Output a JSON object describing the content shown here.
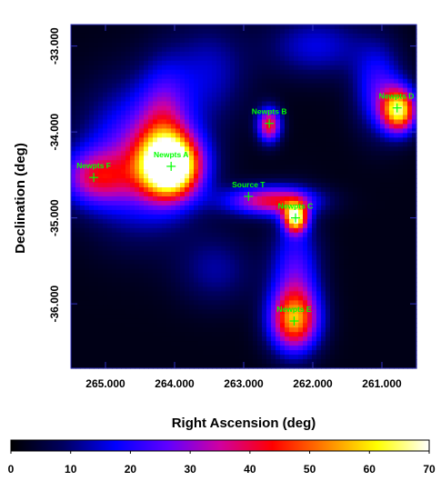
{
  "chart_data": {
    "type": "heatmap",
    "xlabel": "Right Ascension (deg)",
    "ylabel": "Declination (deg)",
    "xlim": [
      265.5,
      260.5
    ],
    "ylim": [
      -36.75,
      -32.75
    ],
    "x_ticks": [
      265.0,
      264.0,
      263.0,
      262.0,
      261.0
    ],
    "x_tick_labels": [
      "265.000",
      "264.000",
      "263.000",
      "262.000",
      "261.000"
    ],
    "y_ticks": [
      -33.0,
      -34.0,
      -35.0,
      -36.0
    ],
    "y_tick_labels": [
      "-33.000",
      "-34.000",
      "-35.000",
      "-36.000"
    ],
    "colorbar": {
      "range": [
        0,
        70
      ],
      "ticks": [
        "0",
        "10",
        "20",
        "30",
        "40",
        "50",
        "60",
        "70"
      ],
      "colors": [
        "#000000",
        "#000060",
        "#0000ff",
        "#6000ff",
        "#d000a0",
        "#ff0000",
        "#ff8000",
        "#ffff00",
        "#ffffff"
      ]
    },
    "sources": [
      {
        "name": "Newpts A",
        "ra": 264.05,
        "dec": -34.4
      },
      {
        "name": "Newpts B",
        "ra": 262.63,
        "dec": -33.9
      },
      {
        "name": "Newpts C",
        "ra": 262.25,
        "dec": -35.0
      },
      {
        "name": "Newpts D",
        "ra": 260.78,
        "dec": -33.72
      },
      {
        "name": "Newpts E",
        "ra": 262.27,
        "dec": -36.2
      },
      {
        "name": "Newpts F",
        "ra": 265.17,
        "dec": -34.53
      },
      {
        "name": "Source T",
        "ra": 262.93,
        "dec": -34.75
      }
    ],
    "blobs": [
      {
        "ra": 264.05,
        "dec": -34.4,
        "peak": 72,
        "sx": 0.3,
        "sy": 0.25
      },
      {
        "ra": 264.5,
        "dec": -34.3,
        "peak": 28,
        "sx": 0.55,
        "sy": 0.55
      },
      {
        "ra": 264.15,
        "dec": -33.85,
        "peak": 18,
        "sx": 0.25,
        "sy": 0.45
      },
      {
        "ra": 265.17,
        "dec": -34.53,
        "peak": 28,
        "sx": 0.35,
        "sy": 0.22
      },
      {
        "ra": 262.63,
        "dec": -33.92,
        "peak": 40,
        "sx": 0.12,
        "sy": 0.14
      },
      {
        "ra": 262.25,
        "dec": -35.0,
        "peak": 58,
        "sx": 0.12,
        "sy": 0.12
      },
      {
        "ra": 262.6,
        "dec": -34.8,
        "peak": 38,
        "sx": 0.45,
        "sy": 0.12
      },
      {
        "ra": 260.75,
        "dec": -33.75,
        "peak": 58,
        "sx": 0.18,
        "sy": 0.18
      },
      {
        "ra": 261.05,
        "dec": -33.5,
        "peak": 20,
        "sx": 0.25,
        "sy": 0.35
      },
      {
        "ra": 262.27,
        "dec": -36.2,
        "peak": 45,
        "sx": 0.25,
        "sy": 0.25
      },
      {
        "ra": 262.25,
        "dec": -35.65,
        "peak": 22,
        "sx": 0.25,
        "sy": 0.45
      },
      {
        "ra": 261.95,
        "dec": -33.0,
        "peak": 14,
        "sx": 0.5,
        "sy": 0.25
      },
      {
        "ra": 263.5,
        "dec": -33.3,
        "peak": 12,
        "sx": 0.4,
        "sy": 0.4
      },
      {
        "ra": 263.4,
        "dec": -35.6,
        "peak": 10,
        "sx": 0.4,
        "sy": 0.3
      }
    ]
  }
}
